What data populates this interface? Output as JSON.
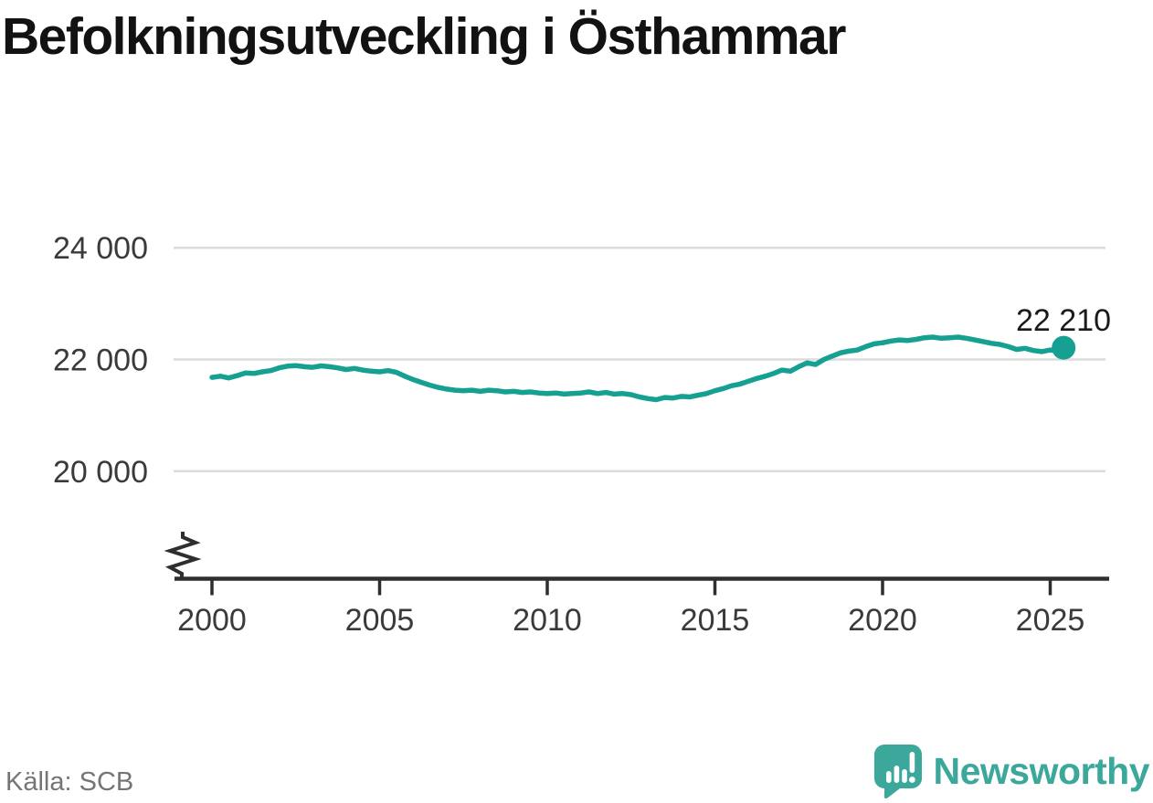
{
  "title": "Befolkningsutveckling i Östhammar",
  "source": "Källa: SCB",
  "brand": {
    "name": "Newsworthy"
  },
  "colors": {
    "line": "#16a091",
    "grid": "#dcdcdc",
    "axis": "#2e2e2e",
    "tick_label": "#3a3a3a",
    "end_label": "#1a1a1a",
    "source_text": "#757575",
    "brand": "#3ca79b"
  },
  "chart_data": {
    "type": "line",
    "title": "Befolkningsutveckling i Östhammar",
    "series_name": "Befolkning",
    "xlabel": "",
    "ylabel": "",
    "grid": "horizontal-only",
    "legend": "none",
    "axis_break_bottom_left": true,
    "x_ticks": [
      2000,
      2005,
      2010,
      2015,
      2020,
      2025
    ],
    "y_ticks": [
      {
        "value": 24000,
        "label": "24 000"
      },
      {
        "value": 22000,
        "label": "22 000"
      },
      {
        "value": 20000,
        "label": "20 000"
      }
    ],
    "xlim": [
      1999.8,
      2026.2
    ],
    "ylim": [
      19400,
      24600
    ],
    "end_label": "22 210",
    "end_point": {
      "x": 2025.4,
      "value": 22210
    },
    "x": [
      2000,
      2000.25,
      2000.5,
      2000.75,
      2001,
      2001.25,
      2001.5,
      2001.75,
      2002,
      2002.25,
      2002.5,
      2002.75,
      2003,
      2003.25,
      2003.5,
      2003.75,
      2004,
      2004.25,
      2004.5,
      2004.75,
      2005,
      2005.25,
      2005.5,
      2005.75,
      2006,
      2006.25,
      2006.5,
      2006.75,
      2007,
      2007.25,
      2007.5,
      2007.75,
      2008,
      2008.25,
      2008.5,
      2008.75,
      2009,
      2009.25,
      2009.5,
      2009.75,
      2010,
      2010.25,
      2010.5,
      2010.75,
      2011,
      2011.25,
      2011.5,
      2011.75,
      2012,
      2012.25,
      2012.5,
      2012.75,
      2013,
      2013.25,
      2013.5,
      2013.75,
      2014,
      2014.25,
      2014.5,
      2014.75,
      2015,
      2015.25,
      2015.5,
      2015.75,
      2016,
      2016.25,
      2016.5,
      2016.75,
      2017,
      2017.25,
      2017.5,
      2017.75,
      2018,
      2018.25,
      2018.5,
      2018.75,
      2019,
      2019.25,
      2019.5,
      2019.75,
      2020,
      2020.25,
      2020.5,
      2020.75,
      2021,
      2021.25,
      2021.5,
      2021.75,
      2022,
      2022.25,
      2022.5,
      2022.75,
      2023,
      2023.25,
      2023.5,
      2023.75,
      2024,
      2024.25,
      2024.5,
      2024.75,
      2025,
      2025.25,
      2025.4
    ],
    "values": [
      21680,
      21700,
      21670,
      21710,
      21760,
      21750,
      21780,
      21800,
      21850,
      21880,
      21890,
      21870,
      21860,
      21885,
      21870,
      21850,
      21820,
      21840,
      21810,
      21790,
      21780,
      21800,
      21770,
      21700,
      21640,
      21590,
      21540,
      21500,
      21470,
      21450,
      21440,
      21450,
      21430,
      21450,
      21440,
      21420,
      21430,
      21410,
      21420,
      21400,
      21390,
      21400,
      21380,
      21390,
      21400,
      21420,
      21390,
      21410,
      21380,
      21390,
      21370,
      21330,
      21300,
      21280,
      21320,
      21310,
      21340,
      21330,
      21360,
      21390,
      21440,
      21480,
      21530,
      21560,
      21610,
      21660,
      21700,
      21750,
      21810,
      21790,
      21870,
      21940,
      21910,
      22000,
      22060,
      22120,
      22150,
      22170,
      22230,
      22280,
      22300,
      22330,
      22350,
      22340,
      22360,
      22390,
      22400,
      22380,
      22390,
      22400,
      22380,
      22350,
      22320,
      22290,
      22270,
      22230,
      22180,
      22200,
      22160,
      22140,
      22170,
      22150,
      22210
    ]
  }
}
